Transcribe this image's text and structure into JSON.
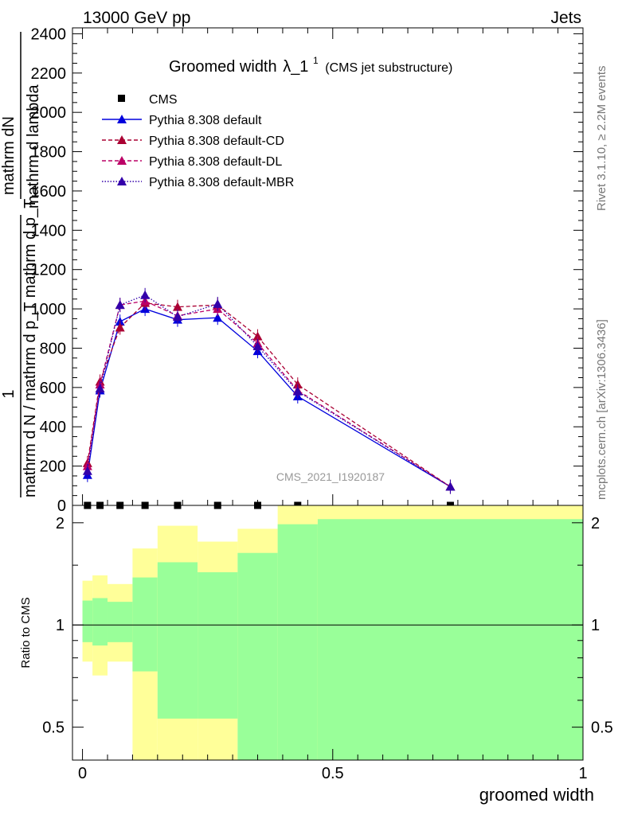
{
  "header": {
    "left": "13000 GeV pp",
    "right": "Jets"
  },
  "side_labels": {
    "rivet": "Rivet 3.1.10, ≥ 2.2M events",
    "mcplots": "mcplots.cern.ch [arXiv:1306.3436]"
  },
  "watermark": "CMS_2021_I1920187",
  "main_ylabel_top": "mathrm dN",
  "main_ylabel_top_rule": "mathrm d lambda",
  "main_ylabel_bottom": "mathrm d N / mathrm d p_T mathrm d p_T",
  "main_ylabel_one": "1",
  "ratio_ylabel": "Ratio to CMS",
  "xlabel": "groomed width",
  "colors": {
    "cms": "#000000",
    "default": "#0000dd",
    "cd": "#aa0033",
    "dl": "#bb0066",
    "mbr": "#3300aa",
    "band_outer": "#ffff99",
    "band_inner": "#99ff99"
  },
  "chart_data": [
    {
      "type": "line",
      "title": "Groomed width",
      "title_symbol": "λ_1",
      "title_sup": "1",
      "title_note": "(CMS jet substructure)",
      "xlim": [
        -0.02,
        1.0
      ],
      "ylim": [
        0,
        2430
      ],
      "yticks": [
        0,
        200,
        400,
        600,
        800,
        1000,
        1200,
        1400,
        1600,
        1800,
        2000,
        2200,
        2400
      ],
      "ytick_labels": [
        "0",
        "200",
        "400",
        "600",
        "800",
        "1000",
        "1200",
        "1400",
        "1600",
        "1800",
        "2000",
        "2200",
        "2400"
      ],
      "legend_position": "top-left",
      "series": [
        {
          "name": "CMS",
          "style": "markers-square",
          "x": [
            0.01,
            0.035,
            0.075,
            0.125,
            0.19,
            0.27,
            0.35,
            0.43,
            0.735
          ],
          "y": [
            0,
            0,
            0,
            0,
            0,
            0,
            0,
            0,
            0
          ]
        },
        {
          "name": "Pythia 8.308 default",
          "style": "solid",
          "x": [
            0.01,
            0.035,
            0.075,
            0.125,
            0.19,
            0.27,
            0.35,
            0.43,
            0.735
          ],
          "y": [
            155,
            585,
            935,
            1000,
            945,
            955,
            785,
            555,
            95
          ]
        },
        {
          "name": "Pythia 8.308 default-CD",
          "style": "dashed",
          "x": [
            0.01,
            0.035,
            0.075,
            0.125,
            0.19,
            0.27,
            0.35,
            0.43,
            0.735
          ],
          "y": [
            215,
            630,
            905,
            1030,
            1010,
            1020,
            860,
            615,
            95
          ]
        },
        {
          "name": "Pythia 8.308 default-DL",
          "style": "dashed",
          "x": [
            0.01,
            0.035,
            0.075,
            0.125,
            0.19,
            0.27,
            0.35,
            0.43,
            0.735
          ],
          "y": [
            200,
            615,
            1020,
            1040,
            965,
            1000,
            825,
            585,
            95
          ]
        },
        {
          "name": "Pythia 8.308 default-MBR",
          "style": "dotted",
          "x": [
            0.01,
            0.035,
            0.075,
            0.125,
            0.19,
            0.27,
            0.35,
            0.43,
            0.735
          ],
          "y": [
            175,
            595,
            1020,
            1070,
            960,
            1025,
            810,
            580,
            95
          ]
        }
      ]
    },
    {
      "type": "area",
      "ylabel": "Ratio to CMS",
      "xlabel": "groomed width",
      "xlim": [
        -0.02,
        1.0
      ],
      "ylim": [
        0.4,
        2.25
      ],
      "yscale": "log",
      "yticks": [
        0.5,
        1,
        2
      ],
      "ytick_labels": [
        "0.5",
        "1",
        "2"
      ],
      "xticks": [
        0,
        0.5,
        1
      ],
      "xtick_labels": [
        "0",
        "0.5",
        "1"
      ],
      "reference_line": 1,
      "bins": [
        0.0,
        0.02,
        0.05,
        0.1,
        0.15,
        0.23,
        0.31,
        0.39,
        0.47,
        1.0
      ],
      "band_outer": {
        "low": [
          0.78,
          0.71,
          0.78,
          0.37,
          0.37,
          0.37,
          0.37,
          0.37,
          0.37
        ],
        "high": [
          1.35,
          1.4,
          1.32,
          1.68,
          1.96,
          1.76,
          1.92,
          2.28,
          2.28
        ]
      },
      "band_inner": {
        "low": [
          0.89,
          0.87,
          0.89,
          0.73,
          0.53,
          0.53,
          0.37,
          0.37,
          0.37
        ],
        "high": [
          1.18,
          1.2,
          1.17,
          1.38,
          1.53,
          1.43,
          1.63,
          1.98,
          2.05
        ]
      }
    }
  ]
}
